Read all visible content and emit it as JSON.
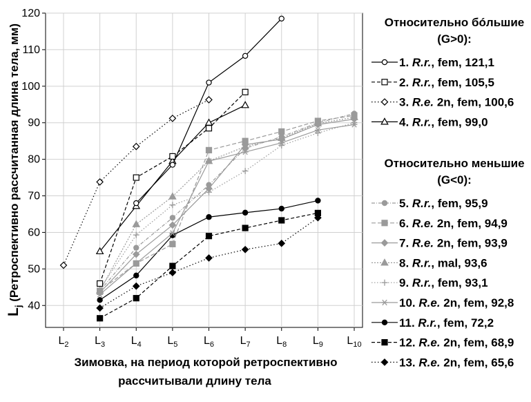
{
  "chart_data": {
    "type": "line",
    "ylabel_main": "L",
    "ylabel_sub": "j",
    "ylabel_rest": " (Ретроспективно рассчитанная длина тела, мм)",
    "xlabel_line1": "Зимовка, на период которой ретроспективно",
    "xlabel_line2": "рассчитывали длину тела",
    "ylim": [
      34,
      120
    ],
    "yticks": [
      40,
      50,
      60,
      70,
      80,
      90,
      100,
      110,
      120
    ],
    "categories": [
      {
        "main": "L",
        "sub": "2"
      },
      {
        "main": "L",
        "sub": "3"
      },
      {
        "main": "L",
        "sub": "4"
      },
      {
        "main": "L",
        "sub": "5"
      },
      {
        "main": "L",
        "sub": "6"
      },
      {
        "main": "L",
        "sub": "7"
      },
      {
        "main": "L",
        "sub": "8"
      },
      {
        "main": "L",
        "sub": "9"
      },
      {
        "main": "L",
        "sub": "10"
      }
    ],
    "grid": true,
    "legend_position": "right",
    "legend_groups": [
      {
        "title_line1": "Относительно бóльшие",
        "title_line2": "(G>0):"
      },
      {
        "title_line1": "Относительно меньшие",
        "title_line2": "(G<0):"
      }
    ],
    "series": [
      {
        "group": 0,
        "prefix": "1. ",
        "species": "R.r.",
        "suffix": ", fem, 121,1",
        "color": "#000000",
        "dash": "",
        "marker": "circle-open",
        "values": [
          null,
          null,
          68.0,
          78.5,
          101.0,
          108.3,
          118.5,
          null,
          null
        ]
      },
      {
        "group": 0,
        "prefix": "2. ",
        "species": "R.r.",
        "suffix": ", fem, 105,5",
        "color": "#000000",
        "dash": "5,3",
        "marker": "square-open",
        "values": [
          null,
          46.0,
          75.0,
          80.8,
          88.5,
          98.4,
          null,
          null,
          null
        ]
      },
      {
        "group": 0,
        "prefix": "3. ",
        "species": "R.e.",
        "suffix": " 2n, fem, 100,6",
        "color": "#000000",
        "dash": "1.5,3",
        "marker": "diamond-open",
        "values": [
          51.0,
          73.8,
          83.5,
          91.2,
          96.3,
          null,
          null,
          null,
          null
        ]
      },
      {
        "group": 0,
        "prefix": "4. ",
        "species": "R.r.",
        "suffix": ", fem, 99,0",
        "color": "#000000",
        "dash": "",
        "marker": "triangle-open",
        "values": [
          null,
          54.8,
          67.2,
          79.5,
          90.0,
          94.8,
          null,
          null,
          null
        ]
      },
      {
        "group": 1,
        "prefix": "5. ",
        "species": "R.r.",
        "suffix": ", fem, 95,9",
        "color": "#9a9a9a",
        "dash": "5,2,1,2",
        "marker": "circle-filled",
        "values": [
          null,
          44.0,
          55.8,
          64.0,
          73.0,
          83.0,
          86.2,
          90.0,
          92.5
        ]
      },
      {
        "group": 1,
        "prefix": "6. ",
        "species": "R.e.",
        "suffix": " 2n, fem, 94,9",
        "color": "#9a9a9a",
        "dash": "6,3",
        "marker": "square-filled",
        "values": [
          null,
          44.0,
          51.5,
          56.8,
          82.5,
          85.0,
          87.6,
          90.5,
          92.0
        ]
      },
      {
        "group": 1,
        "prefix": "7. ",
        "species": "R.e.",
        "suffix": " 2n, fem, 93,9",
        "color": "#9a9a9a",
        "dash": "",
        "marker": "diamond-filled",
        "values": [
          null,
          43.5,
          54.0,
          62.0,
          72.0,
          84.0,
          85.5,
          89.5,
          91.0
        ]
      },
      {
        "group": 1,
        "prefix": "8. ",
        "species": "R.r.",
        "suffix": ", mal, 93,6",
        "color": "#9a9a9a",
        "dash": "2,2",
        "marker": "triangle-filled",
        "values": [
          null,
          44.0,
          62.2,
          69.8,
          79.5,
          83.5,
          85.8,
          89.8,
          91.5
        ]
      },
      {
        "group": 1,
        "prefix": " 9. ",
        "species": "R.r.",
        "suffix": ", fem, 93,1",
        "color": "#9a9a9a",
        "dash": "1.5,2.5",
        "marker": "plus",
        "values": [
          null,
          44.5,
          59.3,
          67.5,
          71.0,
          76.8,
          83.8,
          87.2,
          90.0
        ]
      },
      {
        "group": 1,
        "prefix": "10. ",
        "species": "R.e.",
        "suffix": " 2n, fem, 92,8",
        "color": "#9a9a9a",
        "dash": "",
        "marker": "asterisk",
        "values": [
          null,
          43.0,
          51.5,
          59.8,
          79.5,
          82.0,
          84.5,
          88.0,
          89.5
        ]
      },
      {
        "group": 1,
        "prefix": "11. ",
        "species": "R.r.",
        "suffix": ", fem, 72,2",
        "color": "#000000",
        "dash": "",
        "marker": "circle-filled",
        "values": [
          null,
          41.5,
          48.2,
          59.2,
          64.2,
          65.4,
          66.5,
          68.7,
          null
        ]
      },
      {
        "group": 1,
        "prefix": "12. ",
        "species": "R.e.",
        "suffix": " 2n, fem, 68,9",
        "color": "#000000",
        "dash": "5,3",
        "marker": "square-filled",
        "values": [
          null,
          36.5,
          42.0,
          50.8,
          59.0,
          61.2,
          63.3,
          65.3,
          null
        ]
      },
      {
        "group": 1,
        "prefix": "13. ",
        "species": "R.e.",
        "suffix": " 2n, fem, 65,6",
        "color": "#000000",
        "dash": "1.5,3",
        "marker": "diamond-filled",
        "values": [
          null,
          39.3,
          45.3,
          49.0,
          53.0,
          55.3,
          57.0,
          64.0,
          null
        ]
      }
    ]
  }
}
